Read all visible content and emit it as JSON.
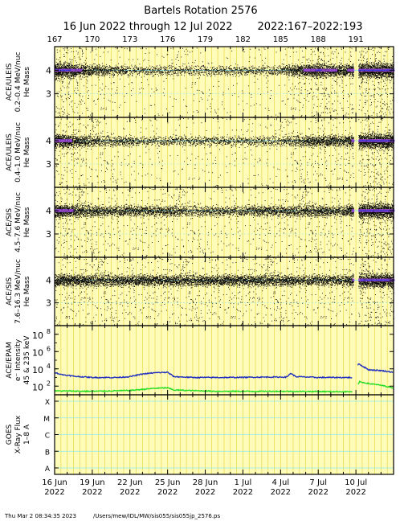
{
  "header": {
    "title": "Bartels Rotation 2576",
    "date_range": "16 Jun 2022 through 12 Jul 2022",
    "doy_range": "2022:167–2022:193"
  },
  "footer": {
    "timestamp": "Thu Mar  2 08:34:35 2023",
    "path": "/Users/mew/IDL/MW/sis055/sis055jp_2576.ps"
  },
  "colors": {
    "day_fill": "#fffbb8",
    "day_line": "#e8d84a",
    "grid_cyan": "#8ee8f0",
    "purple": "#a050e0",
    "blue": "#2030d8",
    "epam_high": "#1f2fbf",
    "epam_low": "#22dd22"
  },
  "chart_data": {
    "type": "scatter",
    "x_start_doy": 167,
    "x_end_doy": 194,
    "top_axis_doy_labels": [
      "167",
      "170",
      "173",
      "176",
      "179",
      "182",
      "185",
      "188",
      "191"
    ],
    "bottom_axis_date_labels": [
      {
        "day": "16 Jun",
        "year": "2022"
      },
      {
        "day": "19 Jun",
        "year": "2022"
      },
      {
        "day": "22 Jun",
        "year": "2022"
      },
      {
        "day": "25 Jun",
        "year": "2022"
      },
      {
        "day": "28 Jun",
        "year": "2022"
      },
      {
        "day": "1 Jul",
        "year": "2022"
      },
      {
        "day": "4 Jul",
        "year": "2022"
      },
      {
        "day": "7 Jul",
        "year": "2022"
      },
      {
        "day": "10 Jul",
        "year": "2022"
      }
    ],
    "panels": [
      {
        "id": "uleis1",
        "ylabel": [
          "ACE/ULEIS",
          "0.2–0.4 MeV/nuc",
          "He Mass"
        ],
        "yticks": [
          "3",
          "4"
        ],
        "ylim": [
          2.0,
          5.0
        ],
        "data_gap_doy": [
          190.8,
          191.2
        ],
        "density_profile": [
          {
            "doy": 167.0,
            "density": 1.0
          },
          {
            "doy": 168.3,
            "density": 0.85
          },
          {
            "doy": 170.0,
            "density": 0.35
          },
          {
            "doy": 173.0,
            "density": 0.15
          },
          {
            "doy": 176.0,
            "density": 0.12
          },
          {
            "doy": 180.0,
            "density": 0.12
          },
          {
            "doy": 185.0,
            "density": 0.15
          },
          {
            "doy": 188.0,
            "density": 0.9
          },
          {
            "doy": 190.0,
            "density": 0.5
          },
          {
            "doy": 191.5,
            "density": 1.0
          },
          {
            "doy": 194.0,
            "density": 1.0
          }
        ]
      },
      {
        "id": "uleis2",
        "ylabel": [
          "ACE/ULEIS",
          "0.4–1.0 MeV/nuc",
          "He Mass"
        ],
        "yticks": [
          "3",
          "4"
        ],
        "ylim": [
          2.0,
          5.0
        ],
        "data_gap_doy": [
          190.8,
          191.2
        ],
        "density_profile": [
          {
            "doy": 167.0,
            "density": 0.85
          },
          {
            "doy": 170.0,
            "density": 0.3
          },
          {
            "doy": 175.0,
            "density": 0.1
          },
          {
            "doy": 180.0,
            "density": 0.12
          },
          {
            "doy": 185.0,
            "density": 0.15
          },
          {
            "doy": 188.0,
            "density": 0.5
          },
          {
            "doy": 190.0,
            "density": 0.35
          },
          {
            "doy": 191.5,
            "density": 0.95
          },
          {
            "doy": 194.0,
            "density": 0.95
          }
        ]
      },
      {
        "id": "sis1",
        "ylabel": [
          "ACE/SIS",
          "4.5–7.6 MeV/nuc",
          "He Mass"
        ],
        "yticks": [
          "3",
          "4"
        ],
        "ylim": [
          2.0,
          5.0
        ],
        "data_gap_doy": [
          190.8,
          191.2
        ],
        "density_profile": [
          {
            "doy": 167.0,
            "density": 0.8
          },
          {
            "doy": 170.0,
            "density": 0.4
          },
          {
            "doy": 175.0,
            "density": 0.3
          },
          {
            "doy": 180.0,
            "density": 0.25
          },
          {
            "doy": 185.0,
            "density": 0.3
          },
          {
            "doy": 188.0,
            "density": 0.45
          },
          {
            "doy": 190.0,
            "density": 0.3
          },
          {
            "doy": 191.5,
            "density": 1.0
          },
          {
            "doy": 194.0,
            "density": 1.0
          }
        ]
      },
      {
        "id": "sis2",
        "ylabel": [
          "ACE/SIS",
          "7.6–16.3 MeV/nuc",
          "He Mass"
        ],
        "yticks": [
          "3",
          "4"
        ],
        "ylim": [
          2.0,
          5.0
        ],
        "data_gap_doy": [
          190.8,
          191.2
        ],
        "density_profile": [
          {
            "doy": 167.0,
            "density": 0.55
          },
          {
            "doy": 175.0,
            "density": 0.4
          },
          {
            "doy": 185.0,
            "density": 0.4
          },
          {
            "doy": 190.0,
            "density": 0.35
          },
          {
            "doy": 191.5,
            "density": 0.9
          },
          {
            "doy": 194.0,
            "density": 0.9
          }
        ]
      }
    ],
    "epam": {
      "type": "line",
      "ylabel": [
        "ACE/EPAM",
        "e⁻ Intensity",
        "45 & 235 keV"
      ],
      "yscale": "log",
      "ylim_log10": [
        1,
        9
      ],
      "yticks": [
        {
          "base": "10",
          "exp": "2"
        },
        {
          "base": "10",
          "exp": "4"
        },
        {
          "base": "10",
          "exp": "6"
        },
        {
          "base": "10",
          "exp": "8"
        }
      ],
      "series": [
        {
          "channel": "45 keV",
          "points": [
            {
              "doy": 167.0,
              "log10": 3.6
            },
            {
              "doy": 167.5,
              "log10": 3.35
            },
            {
              "doy": 168.5,
              "log10": 3.15
            },
            {
              "doy": 170.0,
              "log10": 3.0
            },
            {
              "doy": 172.0,
              "log10": 3.0
            },
            {
              "doy": 173.0,
              "log10": 3.1
            },
            {
              "doy": 174.0,
              "log10": 3.4
            },
            {
              "doy": 175.0,
              "log10": 3.55
            },
            {
              "doy": 176.0,
              "log10": 3.6
            },
            {
              "doy": 176.5,
              "log10": 3.1
            },
            {
              "doy": 178.0,
              "log10": 3.0
            },
            {
              "doy": 181.0,
              "log10": 3.0
            },
            {
              "doy": 184.0,
              "log10": 3.05
            },
            {
              "doy": 185.5,
              "log10": 3.05
            },
            {
              "doy": 185.8,
              "log10": 3.5
            },
            {
              "doy": 186.2,
              "log10": 3.1
            },
            {
              "doy": 188.0,
              "log10": 3.0
            },
            {
              "doy": 190.7,
              "log10": 3.0
            },
            {
              "doy": 191.2,
              "log10": 4.6
            },
            {
              "doy": 192.0,
              "log10": 3.9
            },
            {
              "doy": 193.0,
              "log10": 3.8
            },
            {
              "doy": 194.0,
              "log10": 3.6
            }
          ]
        },
        {
          "channel": "235 keV",
          "points": [
            {
              "doy": 167.0,
              "log10": 1.45
            },
            {
              "doy": 170.0,
              "log10": 1.4
            },
            {
              "doy": 173.0,
              "log10": 1.5
            },
            {
              "doy": 175.0,
              "log10": 1.75
            },
            {
              "doy": 176.0,
              "log10": 1.8
            },
            {
              "doy": 176.5,
              "log10": 1.55
            },
            {
              "doy": 180.0,
              "log10": 1.4
            },
            {
              "doy": 185.0,
              "log10": 1.4
            },
            {
              "doy": 190.7,
              "log10": 1.35
            },
            {
              "doy": 191.3,
              "log10": 2.5
            },
            {
              "doy": 192.0,
              "log10": 2.3
            },
            {
              "doy": 193.0,
              "log10": 2.1
            },
            {
              "doy": 194.0,
              "log10": 1.8
            }
          ]
        }
      ]
    },
    "goes": {
      "ylabel": [
        "GOES",
        "X-Ray Flux",
        "1–8 A"
      ],
      "ytick_labels": [
        "A",
        "B",
        "C",
        "M",
        "X"
      ]
    }
  }
}
